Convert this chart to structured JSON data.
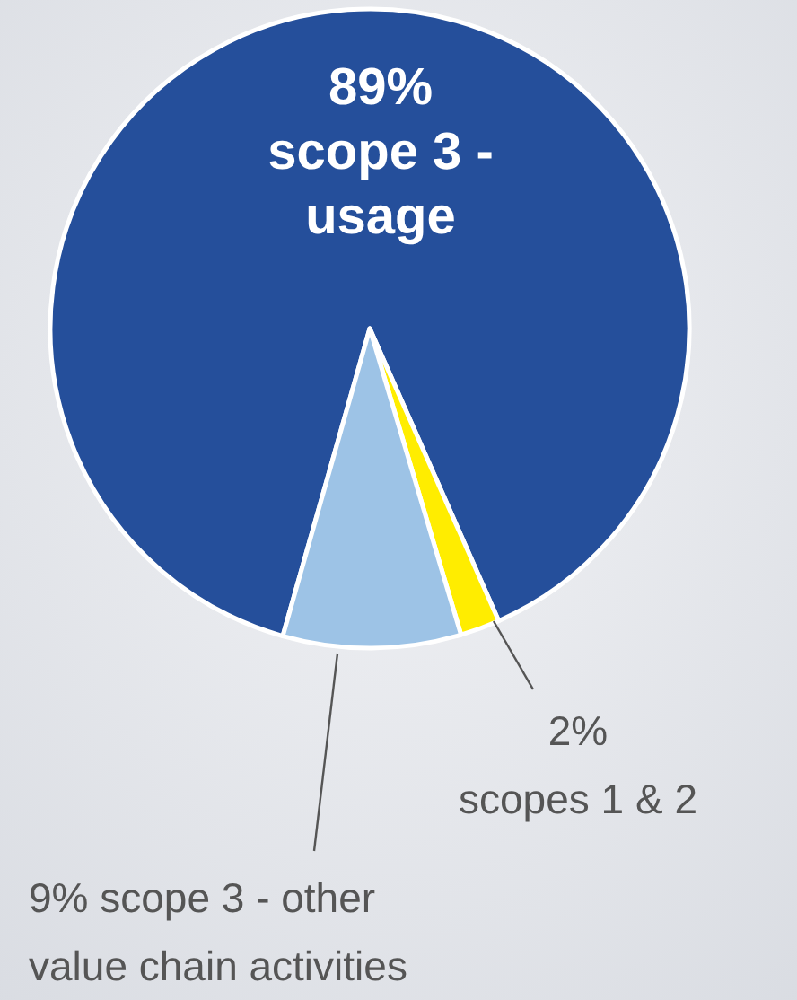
{
  "chart_data": {
    "type": "pie",
    "categories": [
      "scope 3 - usage",
      "scopes 1 & 2",
      "scope 3 - other value chain activities"
    ],
    "values": [
      89,
      2,
      9
    ],
    "colors": [
      "#254f9b",
      "#ffed00",
      "#9dc3e6"
    ],
    "value_labels": [
      "89%",
      "2%",
      "9%"
    ]
  }
}
